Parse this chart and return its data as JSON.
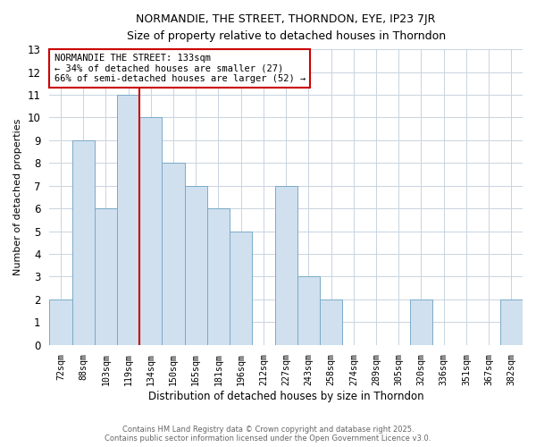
{
  "title_line1": "NORMANDIE, THE STREET, THORNDON, EYE, IP23 7JR",
  "title_line2": "Size of property relative to detached houses in Thorndon",
  "xlabel": "Distribution of detached houses by size in Thorndon",
  "ylabel": "Number of detached properties",
  "bar_color": "#d0e0ef",
  "bar_edge_color": "#7aaac8",
  "categories": [
    "72sqm",
    "88sqm",
    "103sqm",
    "119sqm",
    "134sqm",
    "150sqm",
    "165sqm",
    "181sqm",
    "196sqm",
    "212sqm",
    "227sqm",
    "243sqm",
    "258sqm",
    "274sqm",
    "289sqm",
    "305sqm",
    "320sqm",
    "336sqm",
    "351sqm",
    "367sqm",
    "382sqm"
  ],
  "values": [
    2,
    9,
    6,
    11,
    10,
    8,
    7,
    6,
    5,
    0,
    7,
    3,
    2,
    0,
    0,
    0,
    2,
    0,
    0,
    0,
    2
  ],
  "vline_x": 4,
  "vline_color": "#cc0000",
  "ylim": [
    0,
    13
  ],
  "yticks": [
    0,
    1,
    2,
    3,
    4,
    5,
    6,
    7,
    8,
    9,
    10,
    11,
    12,
    13
  ],
  "annotation_title": "NORMANDIE THE STREET: 133sqm",
  "annotation_line2": "← 34% of detached houses are smaller (27)",
  "annotation_line3": "66% of semi-detached houses are larger (52) →",
  "footer_line1": "Contains HM Land Registry data © Crown copyright and database right 2025.",
  "footer_line2": "Contains public sector information licensed under the Open Government Licence v3.0.",
  "background_color": "#ffffff",
  "plot_bg_color": "#ffffff",
  "grid_color": "#c8d4e0"
}
